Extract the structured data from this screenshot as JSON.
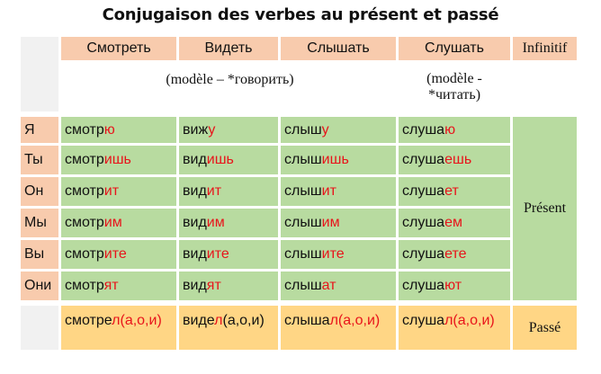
{
  "title": "Conjugaison des verbes au présent et passé",
  "verbs": [
    "Смотреть",
    "Видеть",
    "Слышать",
    "Слушать"
  ],
  "infinitif_label": "Infinitif",
  "model_note_1": "(modèle – *говорить)",
  "model_note_2_line1": "(modèle -",
  "model_note_2_line2": "*читать)",
  "present_label": "Présent",
  "past_label": "Passé",
  "rows": [
    {
      "pronoun": "Я",
      "forms": [
        [
          "смотр",
          "ю"
        ],
        [
          "виж",
          "у"
        ],
        [
          "слыш",
          "у"
        ],
        [
          "слуша",
          "ю"
        ]
      ]
    },
    {
      "pronoun": "Ты",
      "forms": [
        [
          "смотр",
          "ишь"
        ],
        [
          "вид",
          "ишь"
        ],
        [
          "слыш",
          "ишь"
        ],
        [
          "слуша",
          "ешь"
        ]
      ]
    },
    {
      "pronoun": "Он",
      "forms": [
        [
          "смотр",
          "ит"
        ],
        [
          "вид",
          "ит"
        ],
        [
          "слыш",
          "ит"
        ],
        [
          "слуша",
          "ет"
        ]
      ]
    },
    {
      "pronoun": "Мы",
      "forms": [
        [
          "смотр",
          "им"
        ],
        [
          "вид",
          "им"
        ],
        [
          "слыш",
          "им"
        ],
        [
          "слуша",
          "ем"
        ]
      ]
    },
    {
      "pronoun": "Вы",
      "forms": [
        [
          "смотр",
          "ите"
        ],
        [
          "вид",
          "ите"
        ],
        [
          "слыш",
          "ите"
        ],
        [
          "слуша",
          "ете"
        ]
      ]
    },
    {
      "pronoun": "Они",
      "forms": [
        [
          "смотр",
          "ят"
        ],
        [
          "вид",
          "ят"
        ],
        [
          "слыш",
          "ат"
        ],
        [
          "слуша",
          "ют"
        ]
      ]
    }
  ],
  "past": [
    {
      "stem": "смотре",
      "marker": "л",
      "endings": "(а,о,и)"
    },
    {
      "stem": "виде",
      "marker": "л",
      "endings": "(а,о,и)"
    },
    {
      "stem": "слыша",
      "marker": "л",
      "endings": "(а,о,и)"
    },
    {
      "stem": "слуша",
      "marker": "л",
      "endings": "(а,о,и)"
    }
  ],
  "colors": {
    "header": "#f8cbad",
    "present": "#b8dba0",
    "past": "#ffd685",
    "ending": "#e8141b"
  }
}
